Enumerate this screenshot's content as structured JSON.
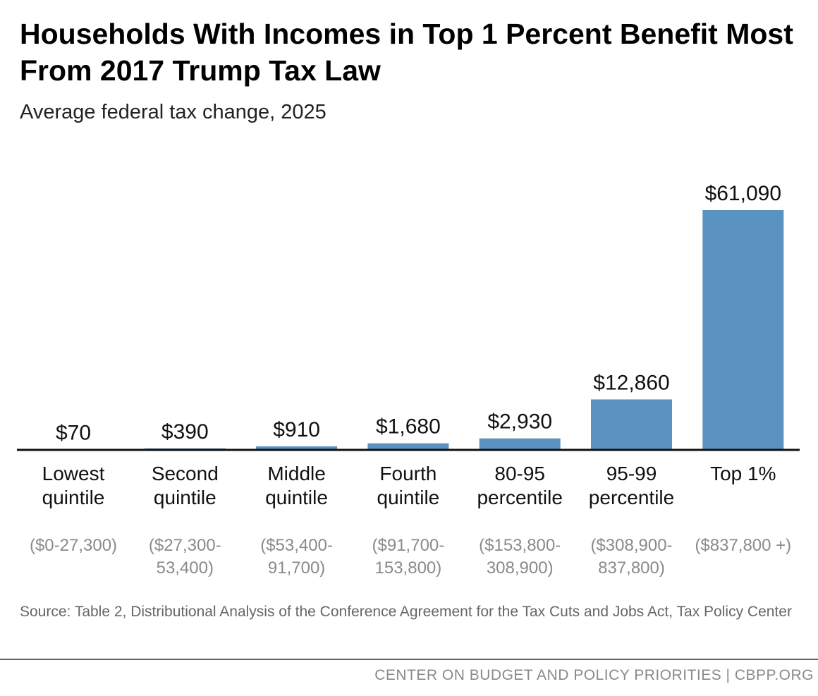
{
  "chart_data": {
    "type": "bar",
    "title": "Households With Incomes in Top 1 Percent Benefit Most From 2017 Trump Tax Law",
    "subtitle": "Average federal tax change, 2025",
    "categories": [
      "Lowest quintile",
      "Second quintile",
      "Middle quintile",
      "Fourth quintile",
      "80-95 percentile",
      "95-99 percentile",
      "Top 1%"
    ],
    "category_notes": [
      "($0-27,300)",
      "($27,300-53,400)",
      "($53,400-91,700)",
      "($91,700-153,800)",
      "($153,800-308,900)",
      "($308,900-837,800)",
      "($837,800 +)"
    ],
    "values": [
      70,
      390,
      910,
      1680,
      2930,
      12860,
      61090
    ],
    "value_labels": [
      "$70",
      "$390",
      "$910",
      "$1,680",
      "$2,930",
      "$12,860",
      "$61,090"
    ],
    "color": "#5a93c2",
    "ylim": [
      0,
      61090
    ]
  },
  "source": "Source: Table 2, Distributional Analysis of the Conference Agreement for the Tax Cuts and Jobs Act, Tax Policy Center",
  "footer": "CENTER ON BUDGET AND POLICY PRIORITIES | CBPP.ORG"
}
